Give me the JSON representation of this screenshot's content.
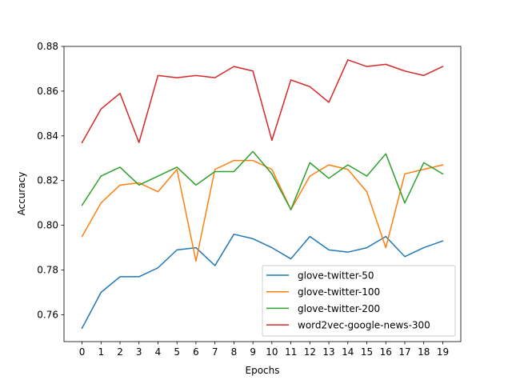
{
  "chart_data": {
    "type": "line",
    "xlabel": "Epochs",
    "ylabel": "Accuracy",
    "x": [
      0,
      1,
      2,
      3,
      4,
      5,
      6,
      7,
      8,
      9,
      10,
      11,
      12,
      13,
      14,
      15,
      16,
      17,
      18,
      19
    ],
    "xticks": [
      "0",
      "1",
      "2",
      "3",
      "4",
      "5",
      "6",
      "7",
      "8",
      "9",
      "10",
      "11",
      "12",
      "13",
      "14",
      "15",
      "16",
      "17",
      "18",
      "19"
    ],
    "yticks": [
      "0.76",
      "0.78",
      "0.80",
      "0.82",
      "0.84",
      "0.86",
      "0.88"
    ],
    "xlim": [
      -0.95,
      19.95
    ],
    "ylim": [
      0.748,
      0.88
    ],
    "grid": false,
    "legend_position": "lower-right",
    "series": [
      {
        "name": "glove-twitter-50",
        "color": "#1f77b4",
        "values": [
          0.754,
          0.77,
          0.777,
          0.777,
          0.781,
          0.789,
          0.79,
          0.782,
          0.796,
          0.794,
          0.79,
          0.785,
          0.795,
          0.789,
          0.788,
          0.79,
          0.795,
          0.786,
          0.79,
          0.793
        ]
      },
      {
        "name": "glove-twitter-100",
        "color": "#ff7f0e",
        "values": [
          0.795,
          0.81,
          0.818,
          0.819,
          0.815,
          0.825,
          0.784,
          0.825,
          0.829,
          0.829,
          0.825,
          0.807,
          0.822,
          0.827,
          0.825,
          0.815,
          0.79,
          0.823,
          0.825,
          0.827
        ]
      },
      {
        "name": "glove-twitter-200",
        "color": "#2ca02c",
        "values": [
          0.809,
          0.822,
          0.826,
          0.818,
          0.822,
          0.826,
          0.818,
          0.824,
          0.824,
          0.833,
          0.823,
          0.807,
          0.828,
          0.821,
          0.827,
          0.822,
          0.832,
          0.81,
          0.828,
          0.823
        ]
      },
      {
        "name": "word2vec-google-news-300",
        "color": "#d62728",
        "values": [
          0.837,
          0.852,
          0.859,
          0.837,
          0.867,
          0.866,
          0.867,
          0.866,
          0.871,
          0.869,
          0.838,
          0.865,
          0.862,
          0.855,
          0.874,
          0.871,
          0.872,
          0.869,
          0.867,
          0.871
        ]
      }
    ]
  }
}
